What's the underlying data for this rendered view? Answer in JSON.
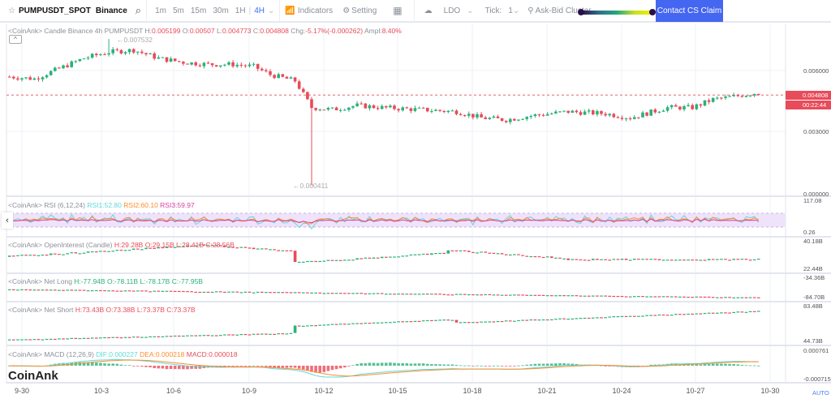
{
  "toolbar": {
    "symbol": "PUMPUSDT_SPOT",
    "exchange": "Binance",
    "timeframes": [
      "1m",
      "5m",
      "15m",
      "30m",
      "1H",
      "4H"
    ],
    "active_timeframe": "4H",
    "indicators": "Indicators",
    "setting": "Setting",
    "ldo": "LDO",
    "tick_label": "Tick:",
    "tick_value": "1",
    "ask_bid": "Ask-Bid Cluster",
    "contact": "Contact CS Claim",
    "accent": "#4466f0"
  },
  "main": {
    "legend_prefix": "<CoinAnk> Candle  Binance 4h PUMPUSDT",
    "h": "H:",
    "hv": "0.005199",
    "o": "O:",
    "ov": "0.00507",
    "l": "L:",
    "lv": "0.004773",
    "c": "C:",
    "cv": "0.004808",
    "chg": "Chg:",
    "chgv": "-5.17%(-0.000262)",
    "ampl": "Ampl:",
    "amplv": "8.40%",
    "high_marker": "←0.007532",
    "low_marker": "←0.000411",
    "price_ticks": [
      "0.006000",
      "0.003000",
      "0.000000"
    ],
    "last_price": "0.004808",
    "countdown": "00:22:44",
    "collapse_icon": "^"
  },
  "rsi": {
    "label": "<CoinAnk> RSI  (6,12,24)",
    "rsi1": "RSI1:52.80",
    "rsi2": "RSI2:60.10",
    "rsi3": "RSI3:59.97",
    "max": "117.08",
    "min": "0.26"
  },
  "oi": {
    "label": "<CoinAnk> OpenInterest (Candle)",
    "h": "H:29.28B",
    "o": "O:29.15B",
    "l": "L:28.41B",
    "c": "C:28.56B",
    "max": "40.18B",
    "min": "22.44B"
  },
  "netlong": {
    "label": "<CoinAnk> Net Long",
    "h": "H:-77.94B",
    "o": "O:-78.11B",
    "l": "L:-78.17B",
    "c": "C:-77.95B",
    "max": "-34.36B",
    "min": "-84.70B"
  },
  "netshort": {
    "label": "<CoinAnk> Net Short",
    "h": "H:73.43B",
    "o": "O:73.38B",
    "l": "L:73.37B",
    "c": "C:73.37B",
    "max": "83.48B",
    "min": "44.73B"
  },
  "macd": {
    "label": "<CoinAnk> MACD  (12,26,9)",
    "dif": "DIF:0.000227",
    "dea": "DEA:0.000218",
    "macd": "MACD:0.000018",
    "max": "0.000761",
    "min": "-0.000715"
  },
  "xaxis": [
    "9-30",
    "10-3",
    "10-6",
    "10-9",
    "10-12",
    "10-15",
    "10-18",
    "10-21",
    "10-24",
    "10-27",
    "10-30"
  ],
  "auto": "AUTO",
  "logo": "CoinAnk",
  "colors": {
    "up": "#2bb17a",
    "down": "#e84b5a",
    "rsi1": "#5fd9d9",
    "rsi2": "#ff8c2b",
    "rsi3": "#d6409f"
  },
  "chart_data": {
    "type": "candlestick",
    "interval": "4h",
    "price_path": [
      [
        "9-29 12:00",
        0.0057
      ],
      [
        "9-30 12:00",
        0.0056
      ],
      [
        "10-1 12:00",
        0.0066
      ],
      [
        "10-2 12:00",
        0.0069
      ],
      [
        "10-3 12:00",
        0.007
      ],
      [
        "10-4 12:00",
        0.0066
      ],
      [
        "10-5 12:00",
        0.0064
      ],
      [
        "10-6 12:00",
        0.0063
      ],
      [
        "10-7 12:00",
        0.0063
      ],
      [
        "10-8 08:00",
        0.0062
      ],
      [
        "10-9 00:00",
        0.0058
      ],
      [
        "10-10 00:00",
        0.0055
      ],
      [
        "10-10 16:00",
        0.0042
      ],
      [
        "10-11 12:00",
        0.0041
      ],
      [
        "10-12 12:00",
        0.0043
      ],
      [
        "10-13 12:00",
        0.0042
      ],
      [
        "10-15 00:00",
        0.0041
      ],
      [
        "10-16 12:00",
        0.004
      ],
      [
        "10-17 12:00",
        0.0037
      ],
      [
        "10-18 12:00",
        0.0036
      ],
      [
        "10-19 12:00",
        0.0038
      ],
      [
        "10-21 00:00",
        0.004
      ],
      [
        "10-22 12:00",
        0.0039
      ],
      [
        "10-23 12:00",
        0.0037
      ],
      [
        "10-25 00:00",
        0.0042
      ],
      [
        "10-26 00:00",
        0.0042
      ],
      [
        "10-26 20:00",
        0.0046
      ],
      [
        "10-27 12:00",
        0.0047
      ],
      [
        "10-28 12:00",
        0.0049
      ],
      [
        "10-28 16:00",
        0.004808
      ]
    ]
  }
}
